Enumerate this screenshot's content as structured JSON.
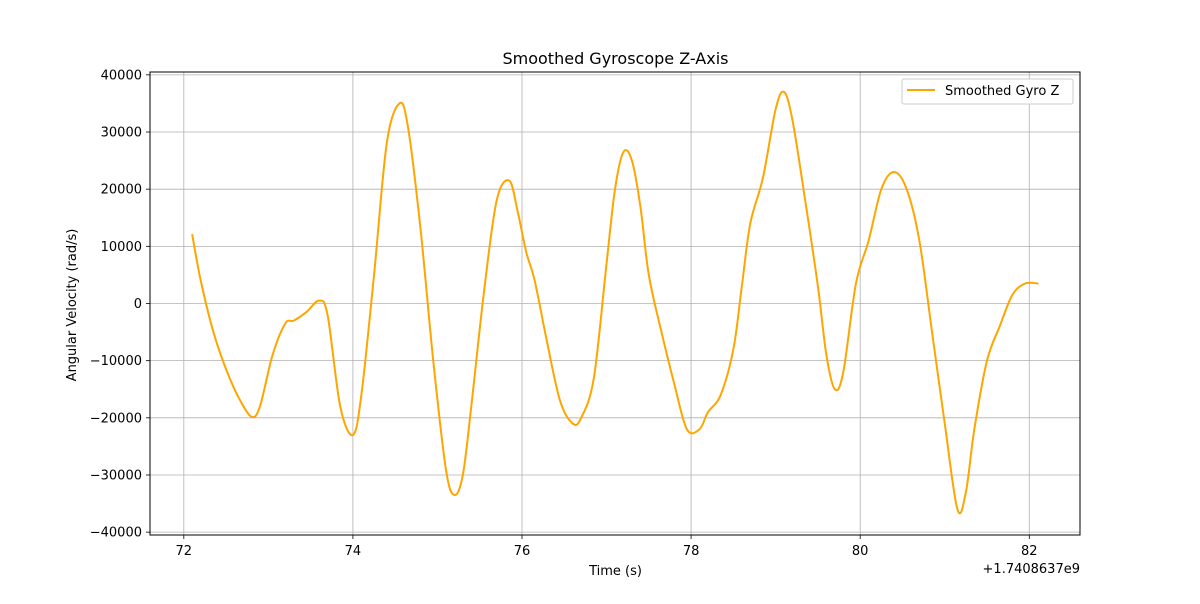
{
  "chart_data": {
    "type": "line",
    "title": "Smoothed Gyroscope Z-Axis",
    "xlabel": "Time (s)",
    "ylabel": "Angular Velocity (rad/s)",
    "x_offset_label": "+1.7408637e9",
    "xlim": [
      71.6,
      82.6
    ],
    "ylim": [
      -40500,
      40500
    ],
    "xticks": [
      72,
      74,
      76,
      78,
      80,
      82
    ],
    "yticks": [
      -40000,
      -30000,
      -20000,
      -10000,
      0,
      10000,
      20000,
      30000,
      40000
    ],
    "grid": true,
    "legend_position": "top-right",
    "series": [
      {
        "name": "Smoothed Gyro Z",
        "color": "#ffa500",
        "x": [
          72.1,
          72.2,
          72.35,
          72.5,
          72.65,
          72.8,
          72.9,
          73.05,
          73.2,
          73.3,
          73.45,
          73.6,
          73.7,
          73.85,
          74.0,
          74.1,
          74.25,
          74.4,
          74.55,
          74.65,
          74.8,
          74.95,
          75.1,
          75.2,
          75.3,
          75.4,
          75.55,
          75.7,
          75.85,
          75.95,
          76.05,
          76.15,
          76.3,
          76.45,
          76.6,
          76.7,
          76.85,
          77.0,
          77.1,
          77.2,
          77.3,
          77.4,
          77.5,
          77.65,
          77.8,
          77.95,
          78.1,
          78.2,
          78.35,
          78.5,
          78.6,
          78.7,
          78.85,
          79.0,
          79.1,
          79.2,
          79.35,
          79.5,
          79.6,
          79.7,
          79.8,
          79.95,
          80.1,
          80.25,
          80.4,
          80.55,
          80.7,
          80.85,
          81.0,
          81.15,
          81.25,
          81.35,
          81.5,
          81.65,
          81.8,
          81.95,
          82.1
        ],
        "values": [
          12000,
          4000,
          -5000,
          -11500,
          -16500,
          -19800,
          -18000,
          -9000,
          -3500,
          -3000,
          -1500,
          500,
          -2000,
          -18000,
          -23000,
          -16000,
          5000,
          28000,
          35000,
          31000,
          13000,
          -10000,
          -29000,
          -33500,
          -30000,
          -18000,
          2000,
          18000,
          21500,
          16000,
          9000,
          4000,
          -7000,
          -17000,
          -21000,
          -20000,
          -13000,
          7000,
          20000,
          26500,
          25000,
          17000,
          5000,
          -5000,
          -14000,
          -22000,
          -22000,
          -19000,
          -16000,
          -8000,
          3000,
          14000,
          22000,
          34000,
          37000,
          32000,
          18000,
          3000,
          -9000,
          -15000,
          -12000,
          3500,
          11000,
          20000,
          23000,
          20000,
          11000,
          -5000,
          -21000,
          -36000,
          -33000,
          -22000,
          -10000,
          -4000,
          1500,
          3500,
          3500
        ]
      }
    ]
  }
}
